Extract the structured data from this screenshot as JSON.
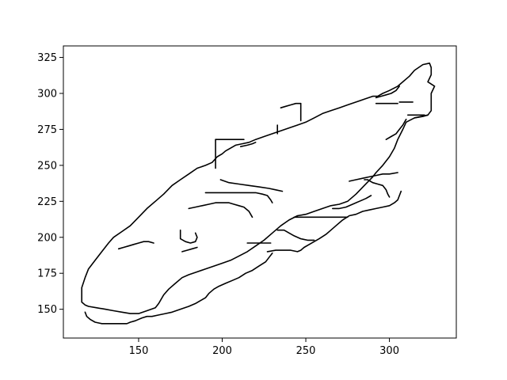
{
  "chart_data": {
    "type": "line",
    "title": "",
    "xlabel": "",
    "ylabel": "",
    "xlim": [
      105,
      340
    ],
    "ylim": [
      130,
      333
    ],
    "x_ticks": [
      150,
      200,
      250,
      300
    ],
    "y_ticks": [
      150,
      175,
      200,
      225,
      250,
      275,
      300,
      325
    ],
    "grid": false,
    "legend": "none",
    "line_color": "#000000",
    "series": [
      {
        "points": [
          [
            116,
            165
          ],
          [
            116,
            155
          ],
          [
            118,
            153
          ],
          [
            120,
            152
          ],
          [
            125,
            151
          ],
          [
            130,
            150
          ],
          [
            135,
            149
          ],
          [
            140,
            148
          ],
          [
            145,
            147
          ],
          [
            150,
            147
          ],
          [
            155,
            149
          ],
          [
            160,
            151
          ],
          [
            162,
            154
          ],
          [
            165,
            160
          ],
          [
            168,
            164
          ],
          [
            172,
            168
          ],
          [
            176,
            172
          ],
          [
            180,
            174
          ],
          [
            185,
            176
          ],
          [
            190,
            178
          ],
          [
            195,
            180
          ],
          [
            200,
            182
          ],
          [
            205,
            184
          ],
          [
            210,
            187
          ],
          [
            215,
            190
          ],
          [
            220,
            194
          ],
          [
            225,
            198
          ],
          [
            230,
            203
          ],
          [
            235,
            208
          ],
          [
            240,
            212
          ],
          [
            245,
            215
          ],
          [
            250,
            216
          ],
          [
            255,
            218
          ],
          [
            260,
            220
          ],
          [
            265,
            222
          ],
          [
            270,
            223
          ],
          [
            275,
            225
          ],
          [
            280,
            230
          ],
          [
            285,
            236
          ],
          [
            290,
            242
          ],
          [
            292,
            245
          ],
          [
            296,
            250
          ],
          [
            300,
            256
          ],
          [
            303,
            262
          ],
          [
            305,
            268
          ],
          [
            308,
            275
          ],
          [
            310,
            280
          ],
          [
            315,
            283
          ],
          [
            320,
            284
          ],
          [
            323,
            285
          ],
          [
            325,
            288
          ],
          [
            325,
            295
          ],
          [
            325,
            300
          ],
          [
            327,
            305
          ],
          [
            323,
            308
          ],
          [
            325,
            313
          ],
          [
            325,
            318
          ],
          [
            324,
            321
          ],
          [
            320,
            320
          ],
          [
            315,
            316
          ],
          [
            312,
            312
          ],
          [
            308,
            308
          ],
          [
            305,
            305
          ],
          [
            300,
            302
          ],
          [
            296,
            300
          ],
          [
            293,
            298
          ],
          [
            290,
            298
          ],
          [
            285,
            296
          ],
          [
            280,
            294
          ],
          [
            275,
            292
          ],
          [
            270,
            290
          ],
          [
            265,
            288
          ],
          [
            260,
            286
          ],
          [
            255,
            283
          ],
          [
            250,
            280
          ],
          [
            245,
            278
          ],
          [
            240,
            276
          ],
          [
            235,
            274
          ],
          [
            230,
            272
          ],
          [
            225,
            270
          ],
          [
            220,
            268
          ],
          [
            216,
            266
          ],
          [
            212,
            265
          ],
          [
            208,
            264
          ],
          [
            205,
            262
          ],
          [
            202,
            260
          ],
          [
            200,
            258
          ],
          [
            197,
            256
          ],
          [
            194,
            252
          ],
          [
            190,
            250
          ],
          [
            185,
            248
          ],
          [
            180,
            244
          ],
          [
            175,
            240
          ],
          [
            170,
            236
          ],
          [
            165,
            230
          ],
          [
            160,
            225
          ],
          [
            155,
            220
          ],
          [
            150,
            214
          ],
          [
            145,
            208
          ],
          [
            140,
            204
          ],
          [
            135,
            200
          ],
          [
            132,
            196
          ],
          [
            128,
            190
          ],
          [
            124,
            184
          ],
          [
            120,
            178
          ],
          [
            118,
            172
          ],
          [
            116,
            165
          ]
        ]
      },
      {
        "points": [
          [
            118,
            148
          ],
          [
            119,
            145
          ],
          [
            121,
            143
          ],
          [
            124,
            141
          ],
          [
            128,
            140
          ],
          [
            134,
            140
          ],
          [
            140,
            140
          ],
          [
            143,
            140
          ],
          [
            145,
            141
          ],
          [
            148,
            142
          ],
          [
            152,
            144
          ],
          [
            155,
            145
          ],
          [
            158,
            145
          ],
          [
            162,
            146
          ],
          [
            166,
            147
          ],
          [
            170,
            148
          ],
          [
            175,
            150
          ],
          [
            180,
            152
          ],
          [
            184,
            154
          ],
          [
            187,
            156
          ],
          [
            190,
            158
          ],
          [
            192,
            161
          ],
          [
            195,
            164
          ],
          [
            198,
            166
          ],
          [
            202,
            168
          ],
          [
            206,
            170
          ],
          [
            210,
            172
          ],
          [
            214,
            175
          ],
          [
            218,
            177
          ],
          [
            222,
            180
          ],
          [
            226,
            183
          ],
          [
            228,
            186
          ],
          [
            230,
            189
          ]
        ]
      },
      {
        "points": [
          [
            227,
            190
          ],
          [
            232,
            191
          ],
          [
            237,
            191
          ],
          [
            241,
            191
          ],
          [
            245,
            190
          ],
          [
            247,
            191
          ],
          [
            249,
            193
          ],
          [
            252,
            195
          ],
          [
            255,
            197
          ],
          [
            258,
            199
          ],
          [
            262,
            202
          ],
          [
            265,
            205
          ],
          [
            268,
            208
          ],
          [
            272,
            212
          ],
          [
            276,
            215
          ],
          [
            280,
            216
          ],
          [
            284,
            218
          ],
          [
            288,
            219
          ],
          [
            292,
            220
          ],
          [
            296,
            221
          ],
          [
            300,
            222
          ],
          [
            303,
            224
          ],
          [
            305,
            226
          ],
          [
            306,
            229
          ],
          [
            307,
            232
          ]
        ]
      },
      {
        "points": [
          [
            300,
            228
          ],
          [
            299,
            230
          ],
          [
            298,
            233
          ],
          [
            296,
            236
          ],
          [
            293,
            237
          ],
          [
            290,
            238
          ],
          [
            287,
            240
          ],
          [
            285,
            240
          ]
        ]
      },
      {
        "points": [
          [
            138,
            192
          ],
          [
            141,
            193
          ],
          [
            144,
            194
          ],
          [
            147,
            195
          ],
          [
            150,
            196
          ],
          [
            153,
            197
          ],
          [
            156,
            197
          ],
          [
            159,
            196
          ]
        ]
      },
      {
        "points": [
          [
            176,
            190
          ],
          [
            179,
            191
          ],
          [
            182,
            192
          ],
          [
            185,
            193
          ]
        ]
      },
      {
        "points": [
          [
            175,
            205
          ],
          [
            175,
            199
          ],
          [
            178,
            197
          ],
          [
            181,
            196
          ],
          [
            184,
            197
          ],
          [
            185,
            200
          ],
          [
            184,
            203
          ]
        ]
      },
      {
        "points": [
          [
            180,
            220
          ],
          [
            184,
            221
          ],
          [
            188,
            222
          ],
          [
            192,
            223
          ],
          [
            196,
            224
          ],
          [
            200,
            224
          ],
          [
            204,
            224
          ],
          [
            207,
            223
          ],
          [
            210,
            222
          ],
          [
            213,
            221
          ],
          [
            216,
            218
          ],
          [
            217,
            216
          ],
          [
            218,
            214
          ]
        ]
      },
      {
        "points": [
          [
            190,
            231
          ],
          [
            196,
            231
          ],
          [
            202,
            231
          ],
          [
            208,
            231
          ],
          [
            214,
            231
          ],
          [
            220,
            231
          ],
          [
            224,
            230
          ],
          [
            227,
            229
          ],
          [
            229,
            226
          ],
          [
            230,
            224
          ]
        ]
      },
      {
        "points": [
          [
            199,
            240
          ],
          [
            204,
            238
          ],
          [
            210,
            237
          ],
          [
            216,
            236
          ],
          [
            222,
            235
          ],
          [
            228,
            234
          ],
          [
            232,
            233
          ],
          [
            236,
            232
          ]
        ]
      },
      {
        "points": [
          [
            215,
            196
          ],
          [
            220,
            196
          ],
          [
            225,
            196
          ],
          [
            229,
            196
          ]
        ]
      },
      {
        "points": [
          [
            233,
            205
          ],
          [
            237,
            205
          ],
          [
            240,
            203
          ],
          [
            243,
            201
          ],
          [
            247,
            199
          ],
          [
            251,
            198
          ],
          [
            255,
            198
          ]
        ]
      },
      {
        "points": [
          [
            243,
            214
          ],
          [
            248,
            214
          ],
          [
            253,
            214
          ],
          [
            257,
            214
          ],
          [
            262,
            214
          ],
          [
            268,
            214
          ],
          [
            275,
            214
          ]
        ]
      },
      {
        "points": [
          [
            266,
            220
          ],
          [
            270,
            220
          ],
          [
            274,
            221
          ],
          [
            278,
            223
          ],
          [
            282,
            225
          ],
          [
            286,
            227
          ],
          [
            289,
            229
          ]
        ]
      },
      {
        "points": [
          [
            276,
            239
          ],
          [
            280,
            240
          ],
          [
            284,
            241
          ],
          [
            288,
            242
          ],
          [
            292,
            243
          ],
          [
            296,
            244
          ],
          [
            300,
            244
          ],
          [
            305,
            245
          ]
        ]
      },
      {
        "points": [
          [
            196,
            268
          ],
          [
            196,
            248
          ]
        ]
      },
      {
        "points": [
          [
            196,
            268
          ],
          [
            202,
            268
          ],
          [
            208,
            268
          ],
          [
            213,
            268
          ]
        ]
      },
      {
        "points": [
          [
            211,
            263
          ],
          [
            215,
            264
          ],
          [
            218,
            265
          ],
          [
            220,
            266
          ]
        ]
      },
      {
        "points": [
          [
            233,
            272
          ],
          [
            233,
            278
          ]
        ]
      },
      {
        "points": [
          [
            247,
            281
          ],
          [
            247,
            293
          ]
        ]
      },
      {
        "points": [
          [
            235,
            290
          ],
          [
            238,
            291
          ],
          [
            241,
            292
          ],
          [
            244,
            293
          ],
          [
            247,
            293
          ]
        ]
      },
      {
        "points": [
          [
            292,
            297
          ],
          [
            295,
            298
          ],
          [
            298,
            299
          ],
          [
            301,
            300
          ],
          [
            304,
            302
          ],
          [
            306,
            305
          ]
        ]
      },
      {
        "points": [
          [
            292,
            293
          ],
          [
            296,
            293
          ],
          [
            300,
            293
          ],
          [
            305,
            293
          ]
        ]
      },
      {
        "points": [
          [
            306,
            294
          ],
          [
            310,
            294
          ],
          [
            314,
            294
          ]
        ]
      },
      {
        "points": [
          [
            311,
            285
          ],
          [
            316,
            285
          ],
          [
            321,
            285
          ]
        ]
      },
      {
        "points": [
          [
            298,
            268
          ],
          [
            301,
            270
          ],
          [
            304,
            272
          ],
          [
            306,
            275
          ],
          [
            308,
            278
          ],
          [
            310,
            282
          ]
        ]
      },
      {
        "points": [
          [
            315,
            283
          ],
          [
            319,
            284
          ],
          [
            323,
            285
          ]
        ]
      }
    ]
  },
  "x_tick_labels": [
    "150",
    "200",
    "250",
    "300"
  ],
  "y_tick_labels": [
    "150",
    "175",
    "200",
    "225",
    "250",
    "275",
    "300",
    "325"
  ]
}
